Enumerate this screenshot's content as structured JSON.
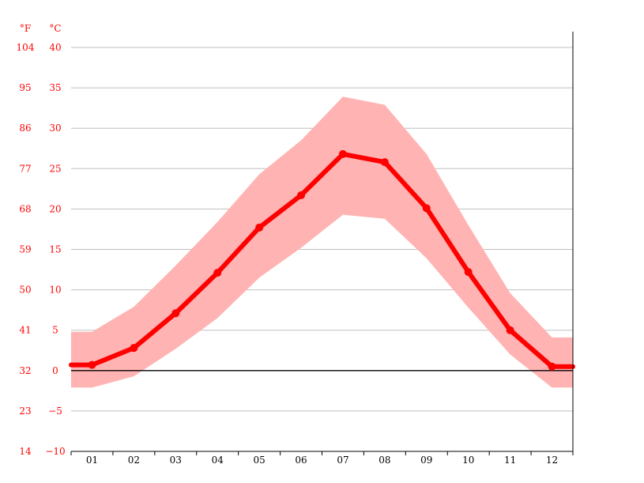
{
  "chart_data": {
    "type": "line",
    "title": "",
    "xlabel": "",
    "ylabel": "",
    "units": {
      "fahrenheit": "°F",
      "celsius": "°C"
    },
    "categories": [
      "01",
      "02",
      "03",
      "04",
      "05",
      "06",
      "07",
      "08",
      "09",
      "10",
      "11",
      "12"
    ],
    "ylim": [
      -10,
      40
    ],
    "yticks_celsius": [
      40,
      35,
      30,
      25,
      20,
      15,
      10,
      5,
      0,
      -5,
      -10
    ],
    "yticks_fahrenheit": [
      "104",
      "95",
      "86",
      "77",
      "68",
      "59",
      "50",
      "41",
      "32",
      "23",
      "14"
    ],
    "grid": true,
    "series": [
      {
        "role": "average",
        "values": [
          0.7,
          2.8,
          7.1,
          12.1,
          17.7,
          21.7,
          26.8,
          25.8,
          20.1,
          12.2,
          5.0,
          0.5
        ]
      },
      {
        "role": "maximum",
        "values": [
          4.8,
          7.9,
          13.0,
          18.4,
          24.3,
          28.5,
          33.9,
          32.9,
          26.8,
          18.0,
          9.6,
          4.1
        ]
      },
      {
        "role": "minimum",
        "values": [
          -2.1,
          -0.7,
          2.7,
          6.5,
          11.5,
          15.2,
          19.3,
          18.8,
          13.9,
          7.8,
          2.0,
          -2.1
        ]
      }
    ],
    "colors": {
      "average": "#ff0000",
      "range": "#ffb3b3",
      "grid": "#c0c0c0",
      "zero": "#000000"
    }
  }
}
